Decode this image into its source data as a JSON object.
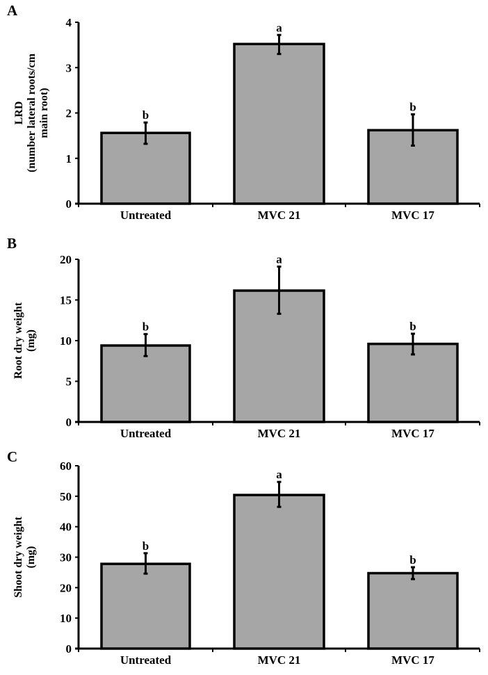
{
  "chart_data": [
    {
      "type": "bar",
      "panel": "A",
      "ylabel_lines": [
        "LRD",
        "(number lateral roots/cm",
        "main root)"
      ],
      "categories": [
        "Untreated",
        "MVC 21",
        "MVC 17"
      ],
      "values": [
        1.56,
        3.52,
        1.62
      ],
      "error_low": [
        1.32,
        3.3,
        1.28
      ],
      "error_high": [
        1.79,
        3.72,
        1.97
      ],
      "significance": [
        "b",
        "a",
        "b"
      ],
      "ylim": [
        0,
        4
      ],
      "yticks": [
        0,
        1,
        2,
        3,
        4
      ],
      "bar_color": "#a6a6a6"
    },
    {
      "type": "bar",
      "panel": "B",
      "ylabel_lines": [
        "Root dry weight",
        "(mg)"
      ],
      "categories": [
        "Untreated",
        "MVC 21",
        "MVC 17"
      ],
      "values": [
        9.4,
        16.15,
        9.6
      ],
      "error_low": [
        8.1,
        13.3,
        8.3
      ],
      "error_high": [
        10.8,
        19.1,
        10.85
      ],
      "significance": [
        "b",
        "a",
        "b"
      ],
      "ylim": [
        0,
        20
      ],
      "yticks": [
        0,
        5,
        10,
        15,
        20
      ],
      "bar_color": "#a6a6a6"
    },
    {
      "type": "bar",
      "panel": "C",
      "ylabel_lines": [
        "Shoot dry weight",
        "(mg)"
      ],
      "categories": [
        "Untreated",
        "MVC 21",
        "MVC 17"
      ],
      "values": [
        27.8,
        50.4,
        24.75
      ],
      "error_low": [
        24.6,
        46.5,
        22.8
      ],
      "error_high": [
        31.3,
        54.7,
        26.7
      ],
      "significance": [
        "b",
        "a",
        "b"
      ],
      "ylim": [
        0,
        60
      ],
      "yticks": [
        0,
        10,
        20,
        30,
        40,
        50,
        60
      ],
      "bar_color": "#a6a6a6"
    }
  ]
}
